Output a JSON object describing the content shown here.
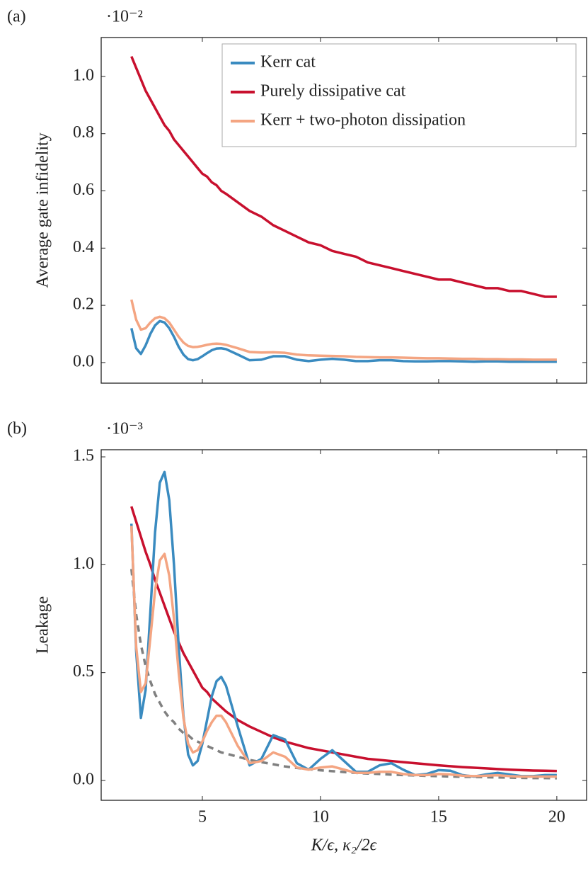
{
  "chart_data": [
    {
      "type": "line",
      "panel_label": "(a)",
      "multiplier": "·10⁻²",
      "ylabel": "Average gate infidelity",
      "xlim": [
        0.72,
        21.26
      ],
      "xticks": [
        5,
        10,
        15,
        20
      ],
      "xtick_labels": false,
      "ylim": [
        -0.072,
        1.136
      ],
      "yticks": [
        {
          "value": 0,
          "label": "0.0"
        },
        0.2,
        0.4,
        0.6,
        0.8,
        {
          "value": 1,
          "label": "1.0"
        }
      ],
      "grid": false,
      "legend": "upper right",
      "x": [
        2.0,
        2.2,
        2.4,
        2.6,
        2.8,
        3.0,
        3.2,
        3.4,
        3.6,
        3.8,
        4.0,
        4.2,
        4.4,
        4.6,
        4.8,
        5.0,
        5.2,
        5.4,
        5.6,
        5.8,
        6.0,
        6.5,
        7.0,
        7.5,
        8.0,
        8.5,
        9.0,
        9.5,
        10.0,
        10.5,
        11.0,
        11.5,
        12.0,
        12.5,
        13.0,
        13.5,
        14.0,
        14.5,
        15.0,
        15.5,
        16.0,
        16.5,
        17.0,
        17.5,
        18.0,
        18.5,
        19.0,
        19.5,
        20.0
      ],
      "series": [
        {
          "name": "Kerr cat",
          "color": "#3a8bc0",
          "values": [
            0.12,
            0.05,
            0.03,
            0.06,
            0.1,
            0.13,
            0.145,
            0.14,
            0.12,
            0.09,
            0.055,
            0.028,
            0.012,
            0.008,
            0.012,
            0.022,
            0.033,
            0.043,
            0.049,
            0.05,
            0.047,
            0.028,
            0.008,
            0.01,
            0.022,
            0.022,
            0.01,
            0.005,
            0.01,
            0.013,
            0.01,
            0.005,
            0.005,
            0.008,
            0.008,
            0.005,
            0.004,
            0.004,
            0.005,
            0.005,
            0.004,
            0.003,
            0.004,
            0.004,
            0.003,
            0.003,
            0.003,
            0.003,
            0.003
          ]
        },
        {
          "name": "Purely dissipative cat",
          "color": "#c8102e",
          "values": [
            1.07,
            1.03,
            0.99,
            0.95,
            0.92,
            0.89,
            0.86,
            0.83,
            0.81,
            0.78,
            0.76,
            0.74,
            0.72,
            0.7,
            0.68,
            0.66,
            0.65,
            0.63,
            0.62,
            0.6,
            0.59,
            0.56,
            0.53,
            0.51,
            0.48,
            0.46,
            0.44,
            0.42,
            0.41,
            0.39,
            0.38,
            0.37,
            0.35,
            0.34,
            0.33,
            0.32,
            0.31,
            0.3,
            0.29,
            0.29,
            0.28,
            0.27,
            0.26,
            0.26,
            0.25,
            0.25,
            0.24,
            0.23,
            0.23
          ]
        },
        {
          "name": "Kerr + two-photon dissipation",
          "color": "#f4a582",
          "values": [
            0.22,
            0.15,
            0.115,
            0.12,
            0.14,
            0.155,
            0.16,
            0.155,
            0.14,
            0.115,
            0.09,
            0.07,
            0.058,
            0.054,
            0.055,
            0.058,
            0.062,
            0.065,
            0.066,
            0.065,
            0.062,
            0.05,
            0.037,
            0.035,
            0.036,
            0.034,
            0.028,
            0.025,
            0.024,
            0.023,
            0.022,
            0.02,
            0.019,
            0.018,
            0.018,
            0.017,
            0.016,
            0.015,
            0.015,
            0.014,
            0.013,
            0.013,
            0.012,
            0.012,
            0.011,
            0.011,
            0.01,
            0.01,
            0.01
          ]
        }
      ]
    },
    {
      "type": "line",
      "panel_label": "(b)",
      "multiplier": "·10⁻³",
      "ylabel": "Leakage",
      "xlabel": "K/ϵ, κ₂/2ϵ",
      "xlim": [
        0.72,
        21.26
      ],
      "xticks": [
        5,
        10,
        15,
        20
      ],
      "ylim": [
        -0.092,
        1.533
      ],
      "yticks": [
        {
          "value": 0,
          "label": "0.0"
        },
        0.5,
        {
          "value": 1,
          "label": "1.0"
        },
        1.5
      ],
      "grid": false,
      "x": [
        2.0,
        2.2,
        2.4,
        2.6,
        2.8,
        3.0,
        3.2,
        3.4,
        3.6,
        3.8,
        4.0,
        4.2,
        4.4,
        4.6,
        4.8,
        5.0,
        5.2,
        5.4,
        5.6,
        5.8,
        6.0,
        6.5,
        7.0,
        7.5,
        8.0,
        8.5,
        9.0,
        9.5,
        10.0,
        10.5,
        11.0,
        11.5,
        12.0,
        12.5,
        13.0,
        13.5,
        14.0,
        14.5,
        15.0,
        15.5,
        16.0,
        16.5,
        17.0,
        17.5,
        18.0,
        18.5,
        19.0,
        19.5,
        20.0
      ],
      "series": [
        {
          "color": "#808080",
          "dashed": true,
          "values": [
            0.98,
            0.77,
            0.63,
            0.53,
            0.46,
            0.4,
            0.36,
            0.32,
            0.29,
            0.27,
            0.24,
            0.22,
            0.21,
            0.19,
            0.18,
            0.17,
            0.16,
            0.15,
            0.14,
            0.13,
            0.125,
            0.11,
            0.095,
            0.085,
            0.075,
            0.065,
            0.058,
            0.052,
            0.047,
            0.043,
            0.039,
            0.035,
            0.032,
            0.03,
            0.027,
            0.025,
            0.023,
            0.021,
            0.02,
            0.018,
            0.017,
            0.016,
            0.015,
            0.014,
            0.013,
            0.012,
            0.011,
            0.011,
            0.01
          ]
        },
        {
          "color": "#c8102e",
          "values": [
            1.27,
            1.2,
            1.13,
            1.06,
            1.0,
            0.93,
            0.87,
            0.81,
            0.75,
            0.69,
            0.64,
            0.59,
            0.55,
            0.51,
            0.47,
            0.43,
            0.41,
            0.38,
            0.36,
            0.34,
            0.32,
            0.28,
            0.25,
            0.225,
            0.2,
            0.18,
            0.165,
            0.15,
            0.14,
            0.13,
            0.12,
            0.11,
            0.1,
            0.095,
            0.09,
            0.085,
            0.08,
            0.075,
            0.07,
            0.066,
            0.062,
            0.059,
            0.056,
            0.053,
            0.05,
            0.048,
            0.046,
            0.045,
            0.044
          ]
        },
        {
          "color": "#3a8bc0",
          "values": [
            1.19,
            0.6,
            0.29,
            0.42,
            0.78,
            1.15,
            1.38,
            1.43,
            1.3,
            1.0,
            0.62,
            0.3,
            0.12,
            0.07,
            0.09,
            0.17,
            0.28,
            0.39,
            0.46,
            0.48,
            0.44,
            0.25,
            0.07,
            0.1,
            0.21,
            0.19,
            0.08,
            0.05,
            0.1,
            0.14,
            0.09,
            0.04,
            0.04,
            0.07,
            0.08,
            0.05,
            0.025,
            0.03,
            0.048,
            0.045,
            0.025,
            0.018,
            0.028,
            0.035,
            0.028,
            0.02,
            0.02,
            0.025,
            0.025
          ]
        },
        {
          "color": "#f4a582",
          "values": [
            1.18,
            0.62,
            0.41,
            0.45,
            0.66,
            0.88,
            1.02,
            1.05,
            0.95,
            0.75,
            0.5,
            0.29,
            0.17,
            0.13,
            0.14,
            0.18,
            0.23,
            0.27,
            0.3,
            0.3,
            0.27,
            0.16,
            0.08,
            0.09,
            0.13,
            0.11,
            0.06,
            0.05,
            0.06,
            0.065,
            0.05,
            0.035,
            0.035,
            0.04,
            0.04,
            0.03,
            0.025,
            0.025,
            0.03,
            0.028,
            0.022,
            0.02,
            0.022,
            0.024,
            0.02,
            0.018,
            0.018,
            0.018,
            0.018
          ]
        }
      ]
    }
  ]
}
